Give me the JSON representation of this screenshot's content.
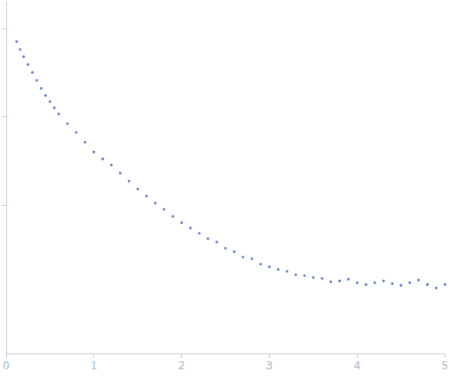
{
  "chart_data": {
    "type": "scatter",
    "color": "#3a64b8",
    "marker": "circle",
    "x": [
      0.12,
      0.16,
      0.2,
      0.25,
      0.3,
      0.35,
      0.4,
      0.45,
      0.5,
      0.55,
      0.6,
      0.7,
      0.8,
      0.9,
      1.0,
      1.1,
      1.2,
      1.3,
      1.4,
      1.5,
      1.6,
      1.7,
      1.8,
      1.9,
      2.0,
      2.1,
      2.2,
      2.3,
      2.4,
      2.5,
      2.6,
      2.7,
      2.8,
      2.9,
      3.0,
      3.1,
      3.2,
      3.3,
      3.4,
      3.5,
      3.6,
      3.7,
      3.8,
      3.9,
      4.0,
      4.1,
      4.2,
      4.3,
      4.4,
      4.5,
      4.6,
      4.7,
      4.8,
      4.9,
      5.0
    ],
    "values": [
      2.85,
      2.76,
      2.68,
      2.59,
      2.5,
      2.41,
      2.32,
      2.24,
      2.17,
      2.1,
      2.03,
      1.92,
      1.82,
      1.71,
      1.6,
      1.52,
      1.45,
      1.36,
      1.27,
      1.18,
      1.1,
      1.02,
      0.95,
      0.87,
      0.8,
      0.74,
      0.68,
      0.62,
      0.58,
      0.51,
      0.47,
      0.41,
      0.39,
      0.33,
      0.3,
      0.27,
      0.25,
      0.21,
      0.2,
      0.18,
      0.17,
      0.13,
      0.14,
      0.16,
      0.12,
      0.1,
      0.12,
      0.14,
      0.11,
      0.09,
      0.12,
      0.15,
      0.1,
      0.06,
      0.1
    ],
    "xlim": [
      0,
      5
    ],
    "xticks": [
      0,
      1,
      2,
      3,
      4,
      5
    ],
    "ylim": [
      -0.68,
      3.3
    ],
    "yticks": [
      1,
      2,
      3
    ],
    "grid": false,
    "tick_labels": "x"
  }
}
